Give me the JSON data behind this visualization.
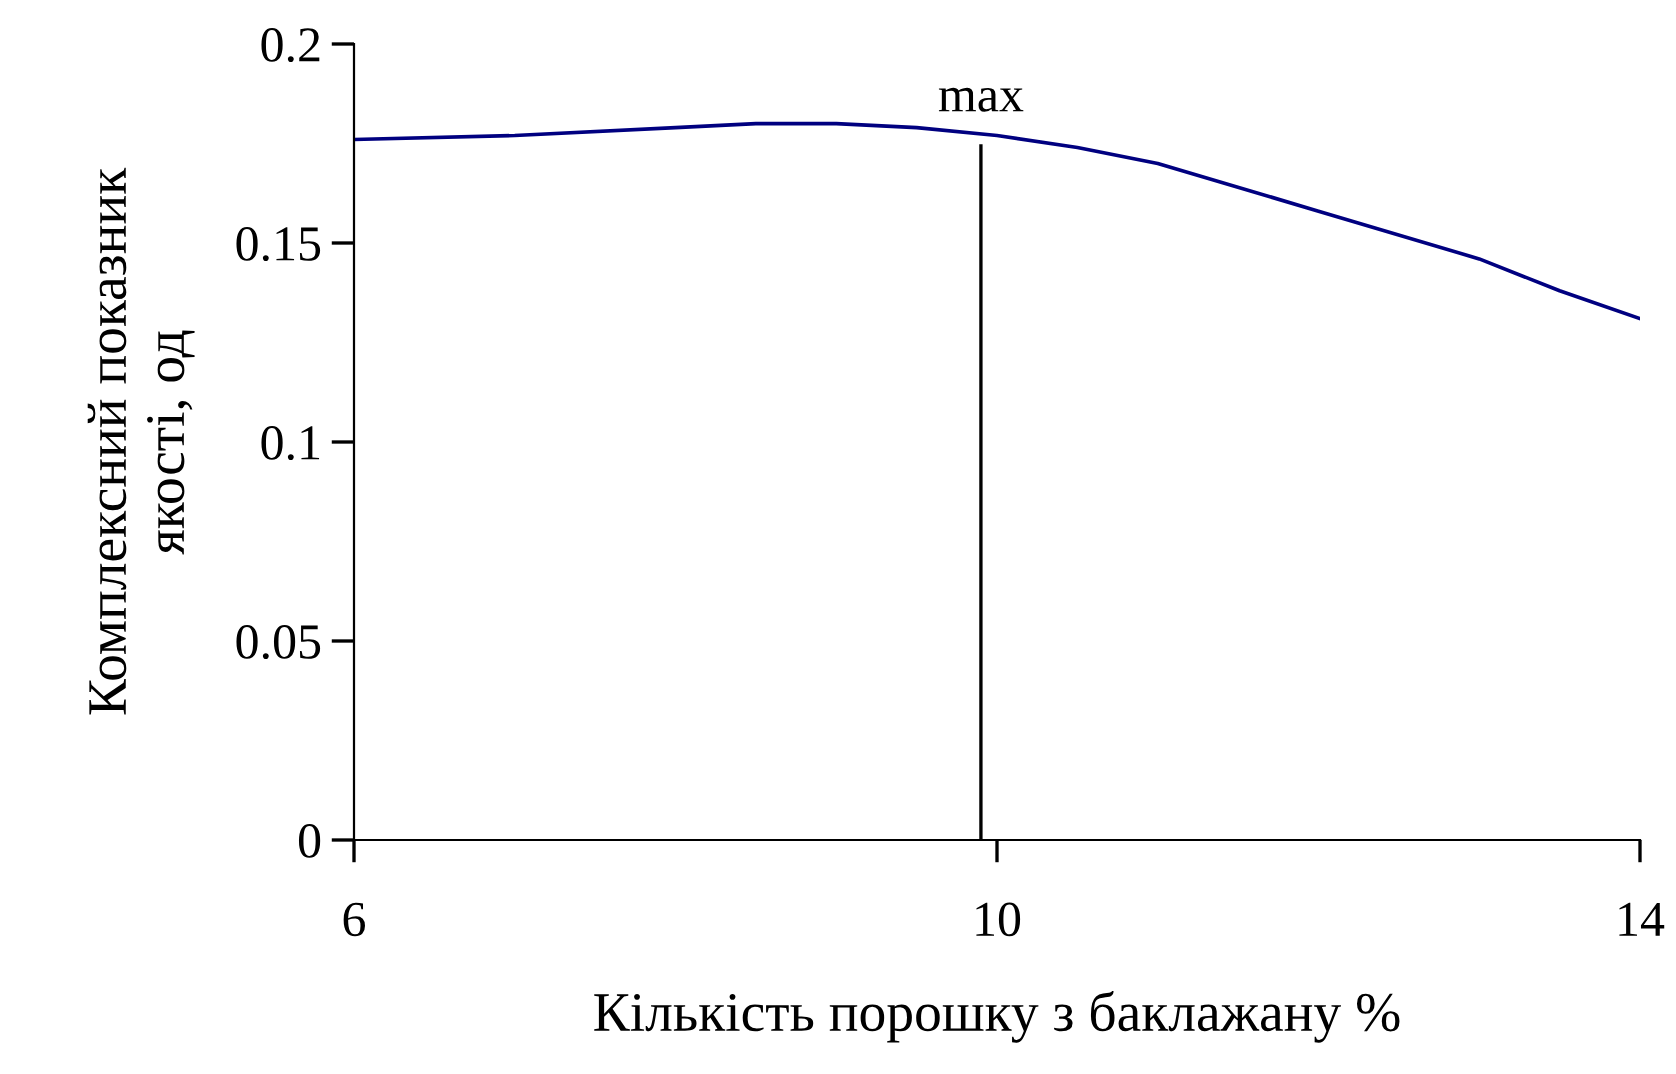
{
  "chart_data": {
    "type": "line",
    "xlabel": "Кількість порошку з баклажану %",
    "ylabel": "Комплексний показник\nякості, од",
    "x": [
      6,
      7,
      8,
      8.5,
      9,
      9.5,
      10,
      10.5,
      11,
      12,
      13,
      13.5,
      14
    ],
    "series": [
      {
        "color": "#000080",
        "values": [
          0.176,
          0.177,
          0.179,
          0.18,
          0.18,
          0.179,
          0.177,
          0.174,
          0.17,
          0.158,
          0.146,
          0.138,
          0.131
        ]
      }
    ],
    "xlim": [
      6,
      14
    ],
    "xticks": [
      6,
      10,
      14
    ],
    "ylim": [
      0,
      0.2
    ],
    "yticks": [
      0,
      0.05,
      0.1,
      0.15,
      0.2
    ],
    "ref_lines": [
      {
        "axis": "x",
        "value": 9.9,
        "label": "max",
        "color": "#000000"
      }
    ],
    "grid": false,
    "legend": false,
    "marker": "none",
    "line_style": "solid"
  }
}
